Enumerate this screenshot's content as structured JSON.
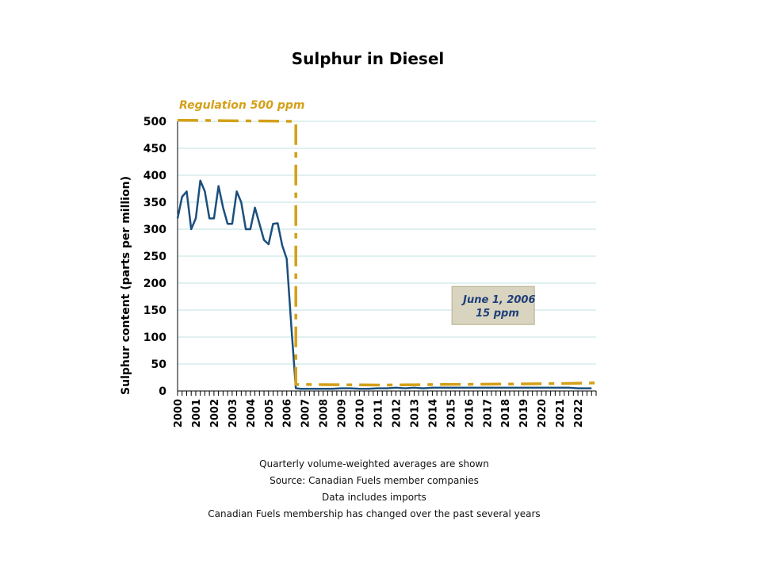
{
  "chart_data": {
    "type": "line",
    "title": "Sulphur in Diesel",
    "ylabel": "Sulphur content (parts per million)",
    "xlabel": "",
    "ylim": [
      0,
      500
    ],
    "yticks": [
      0,
      50,
      100,
      150,
      200,
      250,
      300,
      350,
      400,
      450,
      500
    ],
    "xlim": [
      2000,
      2023
    ],
    "x_tick_labels": [
      "2000",
      "2001",
      "2002",
      "2003",
      "2004",
      "2005",
      "2006",
      "2007",
      "2008",
      "2009",
      "2010",
      "2011",
      "2012",
      "2013",
      "2014",
      "2015",
      "2016",
      "2017",
      "2018",
      "2019",
      "2020",
      "2021",
      "2022"
    ],
    "grid": true,
    "series": [
      {
        "color": "#1b4f7c",
        "points": [
          [
            2000.0,
            320
          ],
          [
            2000.25,
            360
          ],
          [
            2000.5,
            370
          ],
          [
            2000.75,
            300
          ],
          [
            2001.0,
            320
          ],
          [
            2001.25,
            390
          ],
          [
            2001.5,
            370
          ],
          [
            2001.75,
            320
          ],
          [
            2002.0,
            320
          ],
          [
            2002.25,
            380
          ],
          [
            2002.5,
            340
          ],
          [
            2002.75,
            310
          ],
          [
            2003.0,
            310
          ],
          [
            2003.25,
            370
          ],
          [
            2003.5,
            350
          ],
          [
            2003.75,
            300
          ],
          [
            2004.0,
            300
          ],
          [
            2004.25,
            340
          ],
          [
            2004.5,
            310
          ],
          [
            2004.75,
            280
          ],
          [
            2005.0,
            272
          ],
          [
            2005.25,
            310
          ],
          [
            2005.5,
            311
          ],
          [
            2005.75,
            270
          ],
          [
            2006.0,
            245
          ],
          [
            2006.25,
            120
          ],
          [
            2006.5,
            5
          ],
          [
            2006.75,
            4
          ],
          [
            2007.0,
            4
          ],
          [
            2007.5,
            4
          ],
          [
            2008.0,
            4
          ],
          [
            2008.5,
            4
          ],
          [
            2009.0,
            5
          ],
          [
            2009.5,
            5
          ],
          [
            2010.0,
            4
          ],
          [
            2010.5,
            4
          ],
          [
            2011.0,
            5
          ],
          [
            2011.5,
            5
          ],
          [
            2012.0,
            6
          ],
          [
            2012.5,
            5
          ],
          [
            2013.0,
            6
          ],
          [
            2013.5,
            5
          ],
          [
            2014.0,
            6
          ],
          [
            2014.5,
            6
          ],
          [
            2015.0,
            6
          ],
          [
            2015.5,
            6
          ],
          [
            2016.0,
            6
          ],
          [
            2016.5,
            6
          ],
          [
            2017.0,
            6
          ],
          [
            2017.5,
            6
          ],
          [
            2018.0,
            6
          ],
          [
            2018.5,
            6
          ],
          [
            2019.0,
            6
          ],
          [
            2019.5,
            6
          ],
          [
            2020.0,
            6
          ],
          [
            2020.5,
            6
          ],
          [
            2021.0,
            6
          ],
          [
            2021.5,
            6
          ],
          [
            2022.0,
            5
          ],
          [
            2022.5,
            5
          ],
          [
            2022.75,
            5
          ]
        ]
      },
      {
        "color": "#d4a018",
        "style": "dash-dot",
        "points": [
          [
            2000.0,
            502
          ],
          [
            2006.5,
            500
          ],
          [
            2006.5,
            12
          ],
          [
            2011.5,
            11
          ],
          [
            2014.5,
            12
          ],
          [
            2018.5,
            13
          ],
          [
            2021.5,
            14
          ],
          [
            2023.0,
            15
          ]
        ]
      }
    ],
    "annotations": [
      {
        "text": "Regulation 500 ppm",
        "x": 2000.0,
        "y": 500
      },
      {
        "text_lines": [
          "June 1, 2006",
          "15 ppm"
        ],
        "x": 2020.0,
        "y": 85
      }
    ],
    "colors": {
      "sulphur": "#1b4f7c",
      "regulation": "#d4a018",
      "grid": "#d6ecec",
      "box_fill": "#d8d4bf",
      "box_border": "#b7ae8a"
    }
  },
  "notes": [
    "Quarterly volume-weighted  averages are shown",
    "Source: Canadian Fuels member companies",
    "Data includes imports",
    "Canadian Fuels membership has changed over the past several years"
  ]
}
